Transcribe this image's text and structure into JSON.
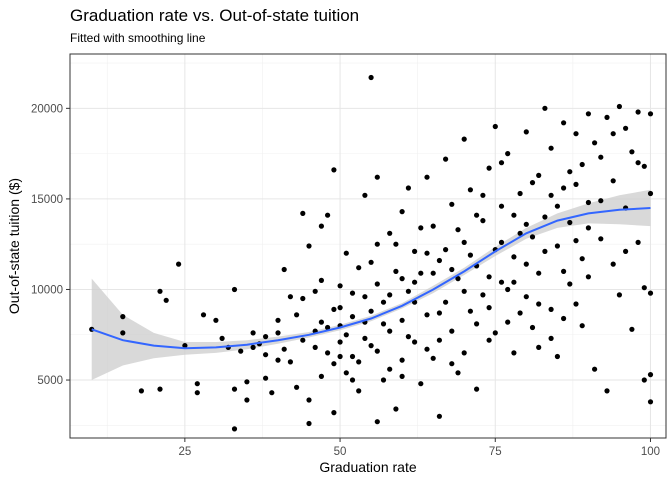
{
  "chart_data": {
    "type": "scatter",
    "title": "Graduation rate vs. Out-of-state tuition",
    "subtitle": "Fitted with smoothing line",
    "xlabel": "Graduation rate",
    "ylabel": "Out-of-state tuition ($)",
    "xlim": [
      6.5,
      102.5
    ],
    "ylim": [
      1800,
      23000
    ],
    "xticks": [
      25,
      50,
      75,
      100
    ],
    "xtick_labels": [
      "25",
      "50",
      "75",
      "100"
    ],
    "yticks": [
      5000,
      10000,
      15000,
      20000
    ],
    "ytick_labels": [
      "5000",
      "10000",
      "15000",
      "20000"
    ],
    "grid": true,
    "point_color": "#000000",
    "smooth_color": "#3366ff",
    "ribbon_color": "#cccccc",
    "smooth": {
      "x": [
        10,
        15,
        20,
        25,
        30,
        35,
        40,
        45,
        50,
        55,
        60,
        65,
        70,
        75,
        80,
        85,
        90,
        95,
        100
      ],
      "y": [
        7800,
        7200,
        6900,
        6750,
        6800,
        6950,
        7200,
        7500,
        7900,
        8400,
        9100,
        10000,
        11000,
        12100,
        13100,
        13800,
        14200,
        14400,
        14500
      ],
      "lower": [
        5000,
        5800,
        6200,
        6400,
        6500,
        6700,
        7000,
        7350,
        7750,
        8250,
        8950,
        9800,
        10800,
        11850,
        12800,
        13400,
        13650,
        13600,
        13500
      ],
      "upper": [
        10600,
        8600,
        7600,
        7100,
        7100,
        7200,
        7400,
        7650,
        8050,
        8550,
        9250,
        10200,
        11200,
        12350,
        13400,
        14200,
        14750,
        15200,
        15500
      ]
    },
    "points": [
      {
        "x": 10,
        "y": 7800
      },
      {
        "x": 15,
        "y": 8500
      },
      {
        "x": 15,
        "y": 7600
      },
      {
        "x": 18,
        "y": 4400
      },
      {
        "x": 21,
        "y": 4500
      },
      {
        "x": 21,
        "y": 9900
      },
      {
        "x": 22,
        "y": 9400
      },
      {
        "x": 24,
        "y": 11400
      },
      {
        "x": 25,
        "y": 6900
      },
      {
        "x": 27,
        "y": 4300
      },
      {
        "x": 27,
        "y": 4800
      },
      {
        "x": 28,
        "y": 8600
      },
      {
        "x": 30,
        "y": 8300
      },
      {
        "x": 31,
        "y": 7300
      },
      {
        "x": 32,
        "y": 6800
      },
      {
        "x": 33,
        "y": 10000
      },
      {
        "x": 33,
        "y": 2300
      },
      {
        "x": 33,
        "y": 4500
      },
      {
        "x": 34,
        "y": 6600
      },
      {
        "x": 35,
        "y": 4900
      },
      {
        "x": 35,
        "y": 3900
      },
      {
        "x": 36,
        "y": 6800
      },
      {
        "x": 36,
        "y": 7600
      },
      {
        "x": 37,
        "y": 7000
      },
      {
        "x": 38,
        "y": 6400
      },
      {
        "x": 38,
        "y": 5100
      },
      {
        "x": 38,
        "y": 7400
      },
      {
        "x": 39,
        "y": 4300
      },
      {
        "x": 40,
        "y": 8300
      },
      {
        "x": 40,
        "y": 7600
      },
      {
        "x": 40,
        "y": 6100
      },
      {
        "x": 41,
        "y": 6700
      },
      {
        "x": 41,
        "y": 11100
      },
      {
        "x": 42,
        "y": 9600
      },
      {
        "x": 42,
        "y": 6000
      },
      {
        "x": 43,
        "y": 4600
      },
      {
        "x": 43,
        "y": 8600
      },
      {
        "x": 44,
        "y": 14200
      },
      {
        "x": 44,
        "y": 7200
      },
      {
        "x": 45,
        "y": 12400
      },
      {
        "x": 45,
        "y": 3900
      },
      {
        "x": 45,
        "y": 2600
      },
      {
        "x": 46,
        "y": 9900
      },
      {
        "x": 46,
        "y": 7700
      },
      {
        "x": 47,
        "y": 8200
      },
      {
        "x": 47,
        "y": 5200
      },
      {
        "x": 47,
        "y": 13500
      },
      {
        "x": 48,
        "y": 14100
      },
      {
        "x": 48,
        "y": 6500
      },
      {
        "x": 49,
        "y": 16600
      },
      {
        "x": 49,
        "y": 8900
      },
      {
        "x": 49,
        "y": 3200
      },
      {
        "x": 50,
        "y": 10200
      },
      {
        "x": 50,
        "y": 7100
      },
      {
        "x": 50,
        "y": 6300
      },
      {
        "x": 51,
        "y": 5400
      },
      {
        "x": 51,
        "y": 12000
      },
      {
        "x": 52,
        "y": 8500
      },
      {
        "x": 52,
        "y": 9800
      },
      {
        "x": 53,
        "y": 6000
      },
      {
        "x": 53,
        "y": 4400
      },
      {
        "x": 54,
        "y": 15200
      },
      {
        "x": 54,
        "y": 7300
      },
      {
        "x": 55,
        "y": 21700
      },
      {
        "x": 55,
        "y": 11500
      },
      {
        "x": 55,
        "y": 8800
      },
      {
        "x": 56,
        "y": 6600
      },
      {
        "x": 56,
        "y": 2700
      },
      {
        "x": 56,
        "y": 16200
      },
      {
        "x": 57,
        "y": 9300
      },
      {
        "x": 57,
        "y": 5000
      },
      {
        "x": 58,
        "y": 13100
      },
      {
        "x": 58,
        "y": 7700
      },
      {
        "x": 59,
        "y": 11000
      },
      {
        "x": 59,
        "y": 3400
      },
      {
        "x": 60,
        "y": 8300
      },
      {
        "x": 60,
        "y": 14300
      },
      {
        "x": 60,
        "y": 6100
      },
      {
        "x": 61,
        "y": 9900
      },
      {
        "x": 61,
        "y": 15600
      },
      {
        "x": 62,
        "y": 7100
      },
      {
        "x": 62,
        "y": 12100
      },
      {
        "x": 63,
        "y": 4800
      },
      {
        "x": 63,
        "y": 10900
      },
      {
        "x": 64,
        "y": 16200
      },
      {
        "x": 64,
        "y": 8600
      },
      {
        "x": 65,
        "y": 13500
      },
      {
        "x": 65,
        "y": 6200
      },
      {
        "x": 66,
        "y": 3000
      },
      {
        "x": 66,
        "y": 11600
      },
      {
        "x": 67,
        "y": 9300
      },
      {
        "x": 67,
        "y": 17200
      },
      {
        "x": 68,
        "y": 7700
      },
      {
        "x": 68,
        "y": 14700
      },
      {
        "x": 69,
        "y": 10600
      },
      {
        "x": 69,
        "y": 5400
      },
      {
        "x": 70,
        "y": 12600
      },
      {
        "x": 70,
        "y": 18300
      },
      {
        "x": 71,
        "y": 8800
      },
      {
        "x": 71,
        "y": 15500
      },
      {
        "x": 72,
        "y": 11300
      },
      {
        "x": 72,
        "y": 4500
      },
      {
        "x": 73,
        "y": 13800
      },
      {
        "x": 73,
        "y": 9700
      },
      {
        "x": 74,
        "y": 16700
      },
      {
        "x": 74,
        "y": 7200
      },
      {
        "x": 75,
        "y": 12200
      },
      {
        "x": 75,
        "y": 19000
      },
      {
        "x": 76,
        "y": 10400
      },
      {
        "x": 76,
        "y": 14600
      },
      {
        "x": 77,
        "y": 8200
      },
      {
        "x": 77,
        "y": 17500
      },
      {
        "x": 78,
        "y": 11800
      },
      {
        "x": 78,
        "y": 6500
      },
      {
        "x": 79,
        "y": 15300
      },
      {
        "x": 79,
        "y": 13100
      },
      {
        "x": 80,
        "y": 9600
      },
      {
        "x": 80,
        "y": 18700
      },
      {
        "x": 81,
        "y": 12900
      },
      {
        "x": 81,
        "y": 7900
      },
      {
        "x": 82,
        "y": 16300
      },
      {
        "x": 82,
        "y": 10900
      },
      {
        "x": 83,
        "y": 20000
      },
      {
        "x": 83,
        "y": 14000
      },
      {
        "x": 84,
        "y": 8900
      },
      {
        "x": 84,
        "y": 17800
      },
      {
        "x": 85,
        "y": 12400
      },
      {
        "x": 85,
        "y": 6300
      },
      {
        "x": 86,
        "y": 15600
      },
      {
        "x": 86,
        "y": 19200
      },
      {
        "x": 87,
        "y": 10300
      },
      {
        "x": 87,
        "y": 13700
      },
      {
        "x": 88,
        "y": 18600
      },
      {
        "x": 88,
        "y": 9200
      },
      {
        "x": 89,
        "y": 16900
      },
      {
        "x": 89,
        "y": 11700
      },
      {
        "x": 90,
        "y": 19700
      },
      {
        "x": 90,
        "y": 14800
      },
      {
        "x": 91,
        "y": 5600
      },
      {
        "x": 91,
        "y": 18100
      },
      {
        "x": 92,
        "y": 12800
      },
      {
        "x": 92,
        "y": 17300
      },
      {
        "x": 93,
        "y": 19500
      },
      {
        "x": 93,
        "y": 4400
      },
      {
        "x": 94,
        "y": 16000
      },
      {
        "x": 94,
        "y": 11400
      },
      {
        "x": 95,
        "y": 20100
      },
      {
        "x": 95,
        "y": 9700
      },
      {
        "x": 96,
        "y": 18900
      },
      {
        "x": 96,
        "y": 14500
      },
      {
        "x": 97,
        "y": 7800
      },
      {
        "x": 97,
        "y": 17600
      },
      {
        "x": 98,
        "y": 19800
      },
      {
        "x": 98,
        "y": 12600
      },
      {
        "x": 99,
        "y": 10100
      },
      {
        "x": 99,
        "y": 16800
      },
      {
        "x": 99,
        "y": 5000
      },
      {
        "x": 100,
        "y": 19700
      },
      {
        "x": 100,
        "y": 15300
      },
      {
        "x": 100,
        "y": 9800
      },
      {
        "x": 100,
        "y": 5300
      },
      {
        "x": 100,
        "y": 3800
      },
      {
        "x": 44,
        "y": 9500
      },
      {
        "x": 46,
        "y": 6800
      },
      {
        "x": 47,
        "y": 10500
      },
      {
        "x": 48,
        "y": 7900
      },
      {
        "x": 49,
        "y": 5900
      },
      {
        "x": 50,
        "y": 9000
      },
      {
        "x": 51,
        "y": 7500
      },
      {
        "x": 52,
        "y": 6300
      },
      {
        "x": 53,
        "y": 11200
      },
      {
        "x": 54,
        "y": 9600
      },
      {
        "x": 55,
        "y": 6900
      },
      {
        "x": 56,
        "y": 10300
      },
      {
        "x": 57,
        "y": 8100
      },
      {
        "x": 58,
        "y": 5600
      },
      {
        "x": 59,
        "y": 12500
      },
      {
        "x": 60,
        "y": 10600
      },
      {
        "x": 61,
        "y": 7400
      },
      {
        "x": 62,
        "y": 9300
      },
      {
        "x": 63,
        "y": 13400
      },
      {
        "x": 64,
        "y": 6700
      },
      {
        "x": 65,
        "y": 10900
      },
      {
        "x": 66,
        "y": 8700
      },
      {
        "x": 67,
        "y": 12200
      },
      {
        "x": 68,
        "y": 5900
      },
      {
        "x": 69,
        "y": 13300
      },
      {
        "x": 70,
        "y": 9900
      },
      {
        "x": 71,
        "y": 11900
      },
      {
        "x": 72,
        "y": 8100
      },
      {
        "x": 73,
        "y": 15200
      },
      {
        "x": 74,
        "y": 10700
      },
      {
        "x": 75,
        "y": 7600
      },
      {
        "x": 76,
        "y": 12600
      },
      {
        "x": 77,
        "y": 10000
      },
      {
        "x": 78,
        "y": 14100
      },
      {
        "x": 79,
        "y": 8700
      },
      {
        "x": 80,
        "y": 11400
      },
      {
        "x": 81,
        "y": 15900
      },
      {
        "x": 82,
        "y": 9200
      },
      {
        "x": 83,
        "y": 12100
      },
      {
        "x": 84,
        "y": 7300
      },
      {
        "x": 85,
        "y": 14600
      },
      {
        "x": 86,
        "y": 11000
      },
      {
        "x": 87,
        "y": 16500
      },
      {
        "x": 88,
        "y": 12700
      },
      {
        "x": 89,
        "y": 8000
      },
      {
        "x": 90,
        "y": 13400
      },
      {
        "x": 50,
        "y": 8000
      },
      {
        "x": 52,
        "y": 5000
      },
      {
        "x": 54,
        "y": 8200
      },
      {
        "x": 56,
        "y": 12500
      },
      {
        "x": 58,
        "y": 9700
      },
      {
        "x": 60,
        "y": 5200
      },
      {
        "x": 62,
        "y": 10400
      },
      {
        "x": 64,
        "y": 12000
      },
      {
        "x": 66,
        "y": 7200
      },
      {
        "x": 68,
        "y": 11100
      },
      {
        "x": 70,
        "y": 6500
      },
      {
        "x": 72,
        "y": 14100
      },
      {
        "x": 74,
        "y": 9000
      },
      {
        "x": 76,
        "y": 17000
      },
      {
        "x": 78,
        "y": 10400
      },
      {
        "x": 80,
        "y": 13600
      },
      {
        "x": 82,
        "y": 6800
      },
      {
        "x": 84,
        "y": 15200
      },
      {
        "x": 86,
        "y": 8400
      },
      {
        "x": 88,
        "y": 15800
      },
      {
        "x": 90,
        "y": 10700
      },
      {
        "x": 92,
        "y": 14900
      },
      {
        "x": 94,
        "y": 18600
      },
      {
        "x": 96,
        "y": 12100
      },
      {
        "x": 98,
        "y": 17000
      }
    ]
  }
}
